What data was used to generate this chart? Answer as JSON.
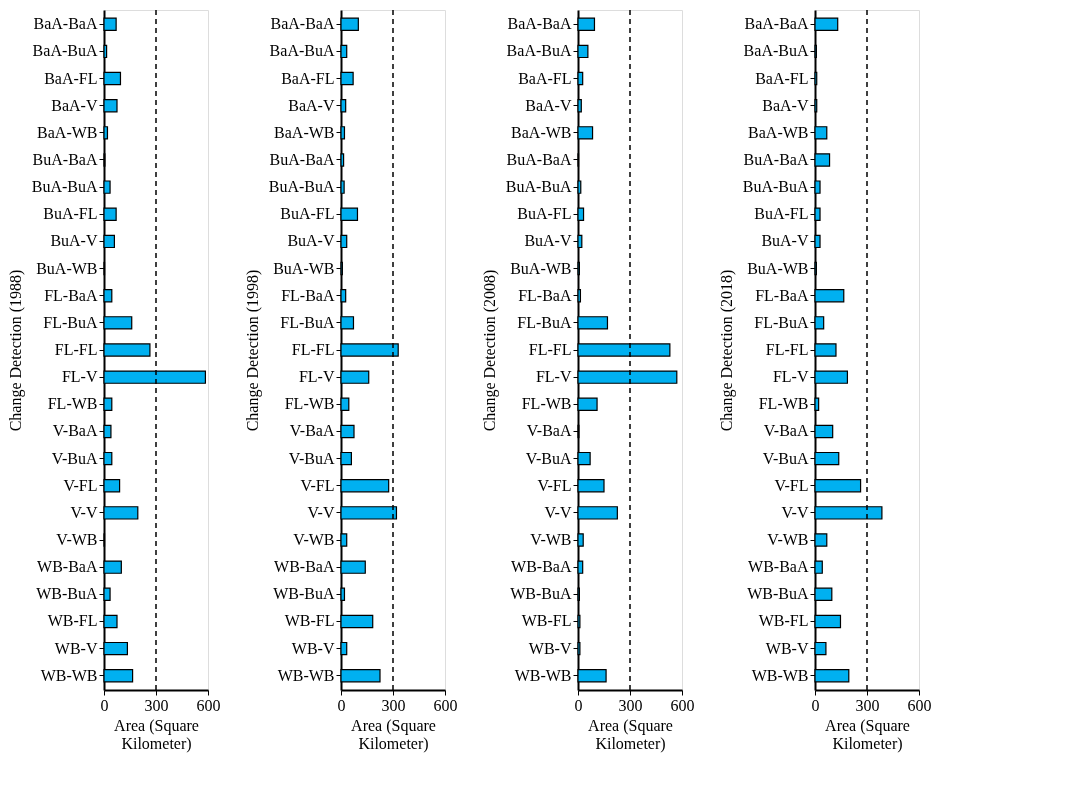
{
  "chart_data": [
    {
      "type": "bar",
      "orientation": "horizontal",
      "ylabel": "Change Detection (1988)",
      "xlabel": "Area (Square Kilometer)",
      "color": "#00b0f0",
      "xlim": [
        0,
        600
      ],
      "xticks": [
        0,
        300,
        600
      ],
      "ref_lines": [
        {
          "axis": "x",
          "value": 300,
          "line_style": "dashed"
        }
      ],
      "categories": [
        "BaA-BaA",
        "BaA-BuA",
        "BaA-FL",
        "BaA-V",
        "BaA-WB",
        "BuA-BaA",
        "BuA-BuA",
        "BuA-FL",
        "BuA-V",
        "BuA-WB",
        "FL-BaA",
        "FL-BuA",
        "FL-FL",
        "FL-V",
        "FL-WB",
        "V-BaA",
        "V-BuA",
        "V-FL",
        "V-V",
        "V-WB",
        "WB-BaA",
        "WB-BuA",
        "WB-FL",
        "WB-V",
        "WB-WB"
      ],
      "values": [
        70,
        15,
        95,
        75,
        20,
        5,
        35,
        70,
        60,
        3,
        45,
        160,
        265,
        585,
        45,
        40,
        45,
        90,
        195,
        3,
        100,
        35,
        75,
        135,
        165
      ]
    },
    {
      "type": "bar",
      "orientation": "horizontal",
      "ylabel": "Change Detection (1998)",
      "xlabel": "Area (Square Kilometer)",
      "color": "#00b0f0",
      "xlim": [
        0,
        600
      ],
      "xticks": [
        0,
        300,
        600
      ],
      "ref_lines": [
        {
          "axis": "x",
          "value": 300,
          "line_style": "dashed"
        }
      ],
      "categories": [
        "BaA-BaA",
        "BaA-BuA",
        "BaA-FL",
        "BaA-V",
        "BaA-WB",
        "BuA-BaA",
        "BuA-BuA",
        "BuA-FL",
        "BuA-V",
        "BuA-WB",
        "FL-BaA",
        "FL-BuA",
        "FL-FL",
        "FL-V",
        "FL-WB",
        "V-BaA",
        "V-BuA",
        "V-FL",
        "V-V",
        "V-WB",
        "WB-BaA",
        "WB-BuA",
        "WB-FL",
        "WB-V",
        "WB-WB"
      ],
      "values": [
        100,
        33,
        70,
        27,
        20,
        15,
        18,
        95,
        33,
        8,
        27,
        72,
        330,
        160,
        45,
        75,
        60,
        275,
        320,
        33,
        140,
        20,
        183,
        33,
        225
      ]
    },
    {
      "type": "bar",
      "orientation": "horizontal",
      "ylabel": "Change Detection (2008)",
      "xlabel": "Area (Square Kilometer)",
      "color": "#00b0f0",
      "xlim": [
        0,
        600
      ],
      "xticks": [
        0,
        300,
        600
      ],
      "ref_lines": [
        {
          "axis": "x",
          "value": 300,
          "line_style": "dashed"
        }
      ],
      "categories": [
        "BaA-BaA",
        "BaA-BuA",
        "BaA-FL",
        "BaA-V",
        "BaA-WB",
        "BuA-BaA",
        "BuA-BuA",
        "BuA-FL",
        "BuA-V",
        "BuA-WB",
        "FL-BaA",
        "FL-BuA",
        "FL-FL",
        "FL-V",
        "FL-WB",
        "V-BaA",
        "V-BuA",
        "V-FL",
        "V-V",
        "V-WB",
        "WB-BaA",
        "WB-BuA",
        "WB-FL",
        "WB-V",
        "WB-WB"
      ],
      "values": [
        95,
        57,
        27,
        19,
        84,
        3,
        16,
        32,
        22,
        8,
        14,
        170,
        530,
        570,
        110,
        5,
        70,
        150,
        227,
        30,
        27,
        8,
        11,
        11,
        162
      ]
    },
    {
      "type": "bar",
      "orientation": "horizontal",
      "ylabel": "Change Detection (2018)",
      "xlabel": "Area (Square Kilometer)",
      "color": "#00b0f0",
      "xlim": [
        0,
        600
      ],
      "xticks": [
        0,
        300,
        600
      ],
      "ref_lines": [
        {
          "axis": "x",
          "value": 300,
          "line_style": "dashed"
        }
      ],
      "categories": [
        "BaA-BaA",
        "BaA-BuA",
        "BaA-FL",
        "BaA-V",
        "BaA-WB",
        "BuA-BaA",
        "BuA-BuA",
        "BuA-FL",
        "BuA-V",
        "BuA-WB",
        "FL-BaA",
        "FL-BuA",
        "FL-FL",
        "FL-V",
        "FL-WB",
        "V-BaA",
        "V-BuA",
        "V-FL",
        "V-V",
        "V-WB",
        "WB-BaA",
        "WB-BuA",
        "WB-FL",
        "WB-V",
        "WB-WB"
      ],
      "values": [
        131,
        8,
        10,
        10,
        68,
        84,
        29,
        29,
        29,
        8,
        166,
        50,
        121,
        187,
        21,
        102,
        137,
        263,
        386,
        68,
        42,
        97,
        147,
        63,
        195
      ]
    }
  ]
}
